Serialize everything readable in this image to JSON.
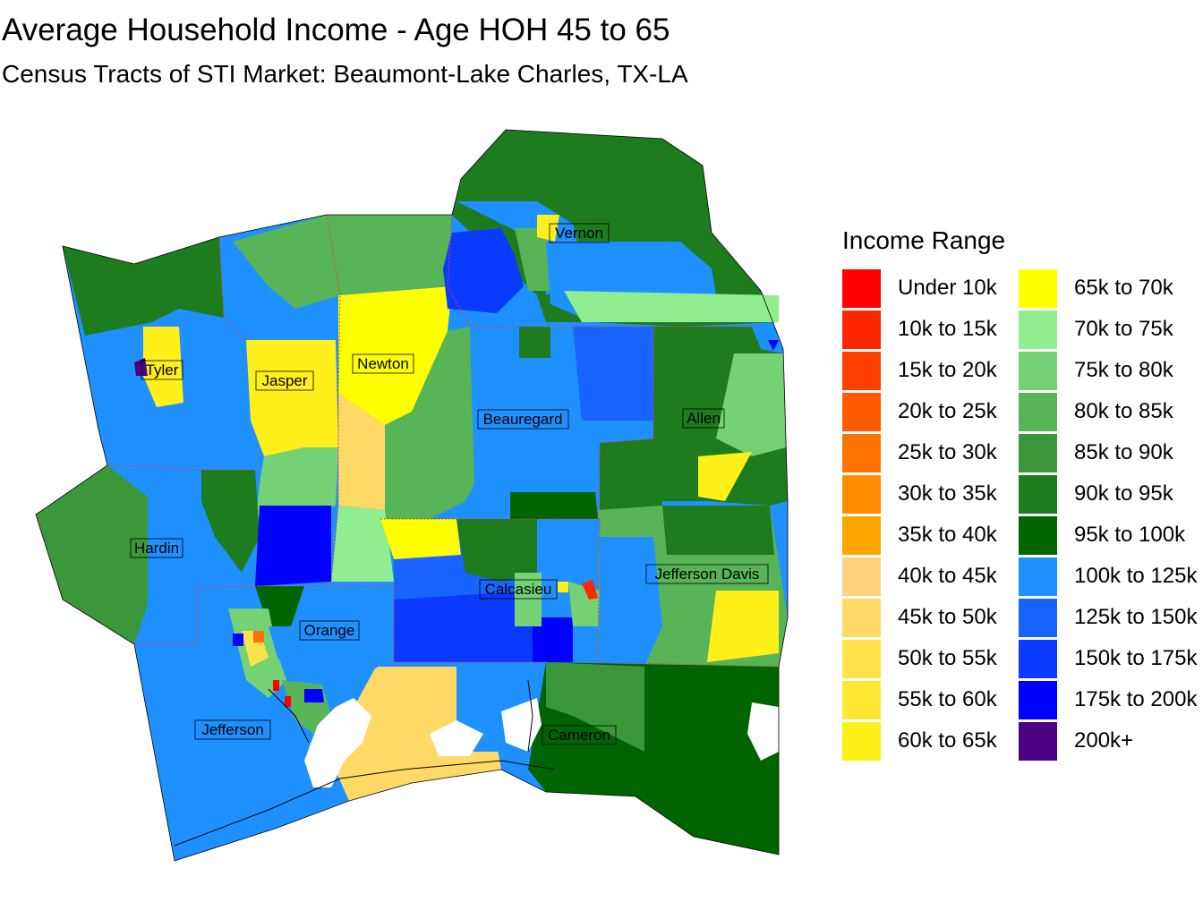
{
  "title": "Average Household Income - Age HOH 45 to 65",
  "subtitle": "Census Tracts of STI Market: Beaumont-Lake Charles, TX-LA",
  "legend": {
    "title": "Income Range",
    "items": [
      {
        "label": "Under 10k",
        "color": "#FF0000"
      },
      {
        "label": "10k to 15k",
        "color": "#FF2600"
      },
      {
        "label": "15k to 20k",
        "color": "#FF4000"
      },
      {
        "label": "20k to 25k",
        "color": "#FF5A00"
      },
      {
        "label": "25k to 30k",
        "color": "#FF7400"
      },
      {
        "label": "30k to 35k",
        "color": "#FF8C00"
      },
      {
        "label": "35k to 40k",
        "color": "#FFA500"
      },
      {
        "label": "40k to 45k",
        "color": "#FFD27F"
      },
      {
        "label": "45k to 50k",
        "color": "#FFD966"
      },
      {
        "label": "50k to 55k",
        "color": "#FFE14C"
      },
      {
        "label": "55k to 60k",
        "color": "#FFE833"
      },
      {
        "label": "60k to 65k",
        "color": "#FFF019"
      },
      {
        "label": "65k to 70k",
        "color": "#FFFF00"
      },
      {
        "label": "70k to 75k",
        "color": "#90EE90"
      },
      {
        "label": "75k to 80k",
        "color": "#74D174"
      },
      {
        "label": "80k to 85k",
        "color": "#57B557"
      },
      {
        "label": "85k to 90k",
        "color": "#3A983A"
      },
      {
        "label": "90k to 95k",
        "color": "#1D7C1D"
      },
      {
        "label": "95k to 100k",
        "color": "#006400"
      },
      {
        "label": "100k to 125k",
        "color": "#1E90FF"
      },
      {
        "label": "125k to 150k",
        "color": "#1964FF"
      },
      {
        "label": "150k to 175k",
        "color": "#0A3AFF"
      },
      {
        "label": "175k to 200k",
        "color": "#0000FF"
      },
      {
        "label": "200k+",
        "color": "#4B0082"
      }
    ]
  },
  "counties": [
    {
      "name": "Tyler"
    },
    {
      "name": "Jasper"
    },
    {
      "name": "Newton"
    },
    {
      "name": "Vernon"
    },
    {
      "name": "Beauregard"
    },
    {
      "name": "Allen"
    },
    {
      "name": "Hardin"
    },
    {
      "name": "Calcasieu"
    },
    {
      "name": "Jefferson Davis"
    },
    {
      "name": "Orange"
    },
    {
      "name": "Jefferson"
    },
    {
      "name": "Cameron"
    }
  ]
}
